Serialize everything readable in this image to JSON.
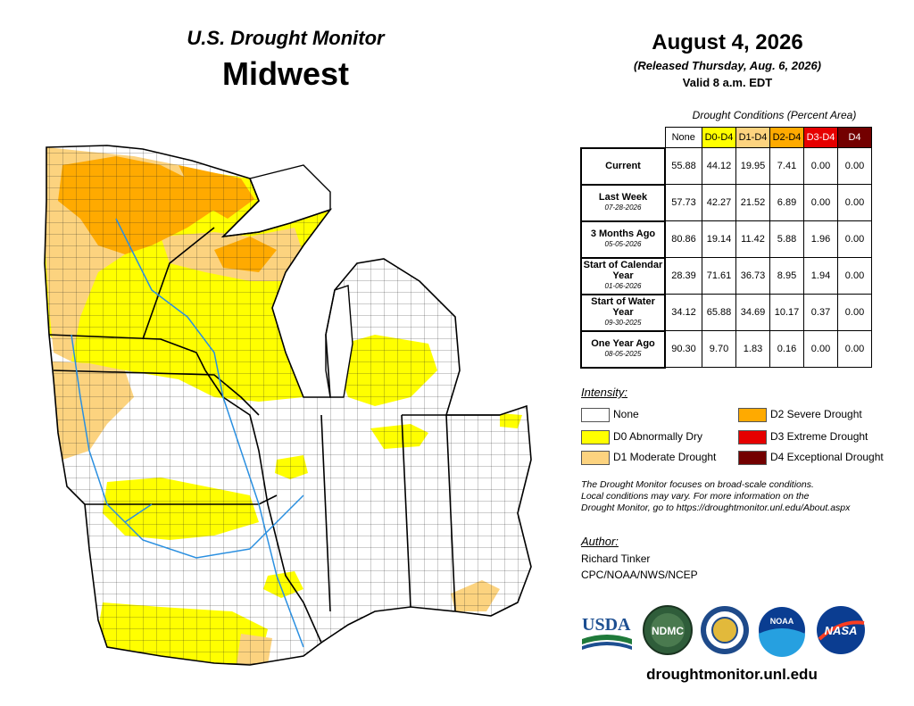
{
  "header": {
    "organization": "U.S. Drought Monitor",
    "region": "Midwest",
    "date": "August 4, 2026",
    "released": "(Released Thursday, Aug. 6, 2026)",
    "valid": "Valid 8 a.m. EDT"
  },
  "table": {
    "title": "Drought Conditions (Percent Area)",
    "columns": [
      {
        "label": "None",
        "color": "#ffffff",
        "text": "#000000"
      },
      {
        "label": "D0-D4",
        "color": "#ffff00",
        "text": "#000000"
      },
      {
        "label": "D1-D4",
        "color": "#fcd37f",
        "text": "#000000"
      },
      {
        "label": "D2-D4",
        "color": "#ffaa00",
        "text": "#000000"
      },
      {
        "label": "D3-D4",
        "color": "#e60000",
        "text": "#ffffff"
      },
      {
        "label": "D4",
        "color": "#730000",
        "text": "#ffffff"
      }
    ],
    "rows": [
      {
        "label": "Current",
        "date": "",
        "values": [
          "55.88",
          "44.12",
          "19.95",
          "7.41",
          "0.00",
          "0.00"
        ]
      },
      {
        "label": "Last Week",
        "date": "07-28-2026",
        "values": [
          "57.73",
          "42.27",
          "21.52",
          "6.89",
          "0.00",
          "0.00"
        ]
      },
      {
        "label": "3 Months Ago",
        "date": "05-05-2026",
        "values": [
          "80.86",
          "19.14",
          "11.42",
          "5.88",
          "1.96",
          "0.00"
        ]
      },
      {
        "label": "Start of Calendar Year",
        "date": "01-06-2026",
        "values": [
          "28.39",
          "71.61",
          "36.73",
          "8.95",
          "1.94",
          "0.00"
        ]
      },
      {
        "label": "Start of Water Year",
        "date": "09-30-2025",
        "values": [
          "34.12",
          "65.88",
          "34.69",
          "10.17",
          "0.37",
          "0.00"
        ]
      },
      {
        "label": "One Year Ago",
        "date": "08-05-2025",
        "values": [
          "90.30",
          "9.70",
          "1.83",
          "0.16",
          "0.00",
          "0.00"
        ]
      }
    ]
  },
  "legend": {
    "title": "Intensity:",
    "items": [
      {
        "label": "None",
        "color": "#ffffff"
      },
      {
        "label": "D0 Abnormally Dry",
        "color": "#ffff00"
      },
      {
        "label": "D1 Moderate Drought",
        "color": "#fcd37f"
      },
      {
        "label": "D2 Severe Drought",
        "color": "#ffaa00"
      },
      {
        "label": "D3 Extreme Drought",
        "color": "#e60000"
      },
      {
        "label": "D4 Exceptional Drought",
        "color": "#730000"
      }
    ]
  },
  "note": {
    "line1": "The Drought Monitor focuses on broad-scale conditions.",
    "line2": "Local conditions may vary. For more information on the",
    "line3": "Drought Monitor, go to https://droughtmonitor.unl.edu/About.aspx"
  },
  "author": {
    "heading": "Author:",
    "name": "Richard Tinker",
    "org": "CPC/NOAA/NWS/NCEP"
  },
  "logos": {
    "usda": "USDA",
    "ndmc": "NDMC",
    "noaa": "NOAA",
    "nasa": "NASA"
  },
  "website": "droughtmonitor.unl.edu"
}
